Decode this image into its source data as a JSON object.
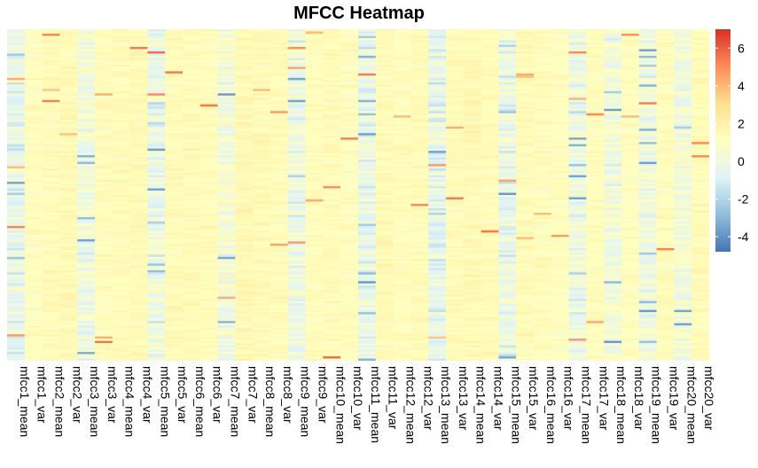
{
  "chart_data": {
    "type": "heatmap",
    "title": "MFCC Heatmap",
    "columns": [
      "mfcc1_mean",
      "mfcc1_var",
      "mfcc2_mean",
      "mfcc2_var",
      "mfcc3_mean",
      "mfcc3_var",
      "mfcc4_mean",
      "mfcc4_var",
      "mfcc5_mean",
      "mfcc5_var",
      "mfcc6_mean",
      "mfcc6_var",
      "mfcc7_mean",
      "mfcc7_var",
      "mfcc8_mean",
      "mfcc8_var",
      "mfcc9_mean",
      "mfcc9_var",
      "mfcc10_mean",
      "mfcc10_var",
      "mfcc11_mean",
      "mfcc11_var",
      "mfcc12_mean",
      "mfcc12_var",
      "mfcc13_mean",
      "mfcc13_var",
      "mfcc14_mean",
      "mfcc14_var",
      "mfcc15_mean",
      "mfcc15_var",
      "mfcc16_mean",
      "mfcc16_var",
      "mfcc17_mean",
      "mfcc17_var",
      "mfcc18_mean",
      "mfcc18_var",
      "mfcc19_mean",
      "mfcc19_var",
      "mfcc20_mean",
      "mfcc20_var"
    ],
    "column_mean_approx": [
      -1.2,
      0.1,
      0.3,
      0.4,
      -0.8,
      0.2,
      0.3,
      0.4,
      -1.0,
      0.3,
      0.4,
      0.2,
      -0.6,
      0.5,
      0.4,
      0.3,
      -0.9,
      0.2,
      0.3,
      0.1,
      -1.1,
      0.4,
      0.2,
      0.3,
      -1.2,
      0.3,
      0.5,
      0.3,
      -1.1,
      0.3,
      0.2,
      0.1,
      -0.9,
      0.2,
      -0.7,
      0.1,
      -0.8,
      0.2,
      -0.6,
      0.3
    ],
    "color_scale": {
      "min": -4.8,
      "max": 7.0,
      "ticks": [
        6,
        4,
        2,
        0,
        -2,
        -4
      ],
      "colors": [
        "#4575b4",
        "#91bfdb",
        "#e0f3f8",
        "#ffffbf",
        "#fee090",
        "#fc8d59",
        "#d73027"
      ]
    },
    "row_labels_shown": false,
    "legend_position": "right"
  }
}
